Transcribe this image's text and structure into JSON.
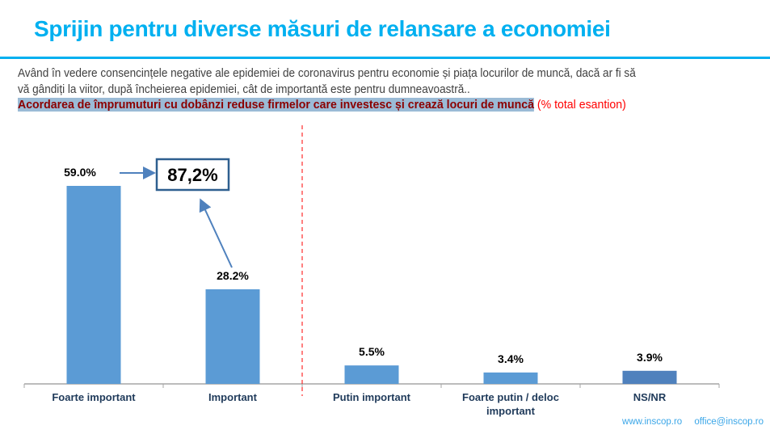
{
  "title": "Sprijin pentru diverse măsuri de relansare a economiei",
  "question_line1": "Având în vedere consencințele negative ale epidemiei de coronavirus pentru economie și piața locurilor de muncă, dacă ar fi să",
  "question_line2": "vă gândiți la viitor, după încheierea epidemiei, cât de importantă este pentru dumneavoastră..",
  "statement": "Acordarea de împrumuturi cu dobânzi reduse firmelor care investesc și crează locuri de muncă",
  "note": "(% total esantion)",
  "callout": "87,2%",
  "footer": {
    "website": "www.inscop.ro",
    "email": "office@inscop.ro"
  },
  "colors": {
    "bar": "#5b9bd5",
    "bar_nsnr": "#4f81bd",
    "title": "#00b0f0",
    "divider": "#ff0000"
  },
  "chart_data": {
    "type": "bar",
    "categories": [
      "Foarte important",
      "Important",
      "Putin important",
      "Foarte putin / deloc important",
      "NS/NR"
    ],
    "category_lines": [
      [
        "Foarte important"
      ],
      [
        "Important"
      ],
      [
        "Putin important"
      ],
      [
        "Foarte putin / deloc",
        "important"
      ],
      [
        "NS/NR"
      ]
    ],
    "values": [
      59.0,
      28.2,
      5.5,
      3.4,
      3.9
    ],
    "labels": [
      "59.0%",
      "28.2%",
      "5.5%",
      "3.4%",
      "3.9%"
    ],
    "ylim": [
      0,
      60
    ],
    "grid": false,
    "annotation": "87,2% = Foarte important + Important"
  }
}
